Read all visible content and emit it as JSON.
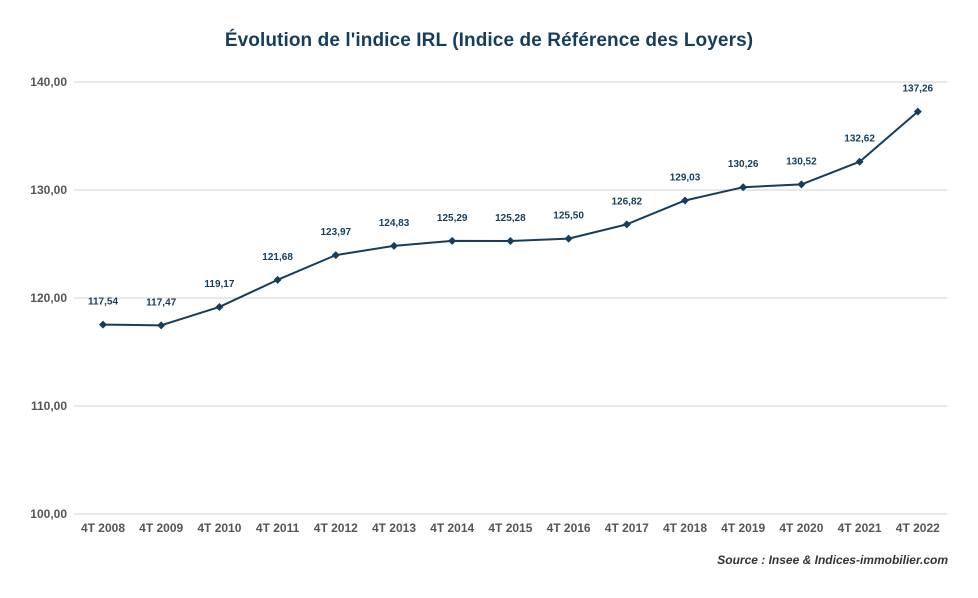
{
  "chart_data": {
    "type": "line",
    "title": "Évolution de l'indice IRL (Indice de Référence des Loyers)",
    "xlabel": "",
    "ylabel": "",
    "ylim": [
      100,
      140
    ],
    "yticks": [
      "100,00",
      "110,00",
      "120,00",
      "130,00",
      "140,00"
    ],
    "grid": true,
    "categories": [
      "4T 2008",
      "4T 2009",
      "4T 2010",
      "4T 2011",
      "4T 2012",
      "4T 2013",
      "4T 2014",
      "4T 2015",
      "4T 2016",
      "4T 2017",
      "4T 2018",
      "4T 2019",
      "4T 2020",
      "4T 2021",
      "4T 2022"
    ],
    "series": [
      {
        "name": "IRL",
        "values": [
          117.54,
          117.47,
          119.17,
          121.68,
          123.97,
          124.83,
          125.29,
          125.28,
          125.5,
          126.82,
          129.03,
          130.26,
          130.52,
          132.62,
          137.26
        ],
        "labels": [
          "117,54",
          "117,47",
          "119,17",
          "121,68",
          "123,97",
          "124,83",
          "125,29",
          "125,28",
          "125,50",
          "126,82",
          "129,03",
          "130,26",
          "130,52",
          "132,62",
          "137,26"
        ]
      }
    ],
    "source": "Source : Insee & Indices-immobilier.com"
  },
  "colors": {
    "line": "#143d5e",
    "marker": "#143d5e",
    "grid": "#d3d3d3",
    "title": "#143d5e",
    "axis_text": "#555555"
  }
}
